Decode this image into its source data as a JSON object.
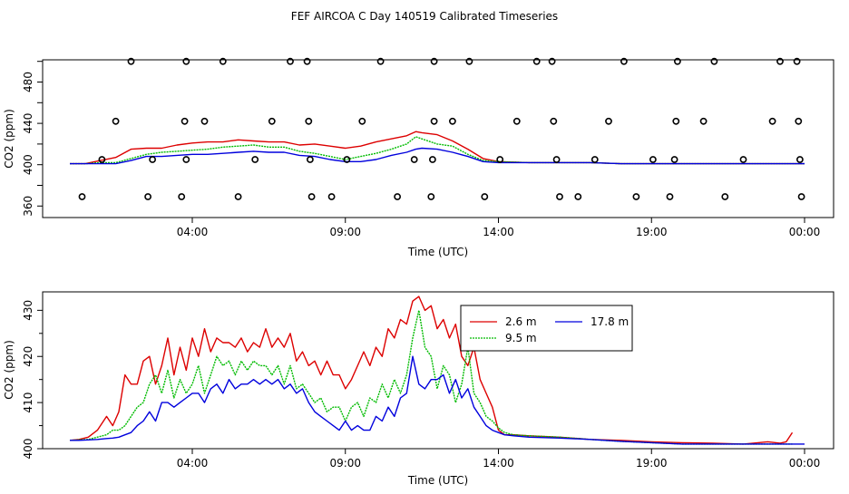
{
  "title": "FEF AIRCOA C  Day 140519  Calibrated Timeseries",
  "colors": {
    "red": "#dd0000",
    "green": "#00bb00",
    "blue": "#0000dd",
    "axis": "#000000"
  },
  "chart_data": [
    {
      "type": "scatter",
      "xlabel": "Time (UTC)",
      "ylabel": "CO2 (ppm)",
      "x_unit": "hours UTC",
      "xlim": [
        0,
        24
      ],
      "ylim": [
        355,
        505
      ],
      "xtick_labels": [
        "04:00",
        "09:00",
        "14:00",
        "19:00",
        "00:00"
      ],
      "ytick_labels": [
        "360",
        "400",
        "440",
        "480"
      ],
      "points": [
        {
          "x": 2.0,
          "y": 500
        },
        {
          "x": 3.8,
          "y": 500
        },
        {
          "x": 5.0,
          "y": 500
        },
        {
          "x": 7.2,
          "y": 500
        },
        {
          "x": 7.75,
          "y": 500
        },
        {
          "x": 10.15,
          "y": 500
        },
        {
          "x": 11.9,
          "y": 500
        },
        {
          "x": 13.05,
          "y": 500
        },
        {
          "x": 15.25,
          "y": 500
        },
        {
          "x": 15.75,
          "y": 500
        },
        {
          "x": 18.1,
          "y": 500
        },
        {
          "x": 19.85,
          "y": 500
        },
        {
          "x": 21.05,
          "y": 500
        },
        {
          "x": 23.2,
          "y": 500
        },
        {
          "x": 23.75,
          "y": 500
        },
        {
          "x": 1.5,
          "y": 442
        },
        {
          "x": 3.75,
          "y": 442
        },
        {
          "x": 4.4,
          "y": 442
        },
        {
          "x": 6.6,
          "y": 442
        },
        {
          "x": 7.8,
          "y": 442
        },
        {
          "x": 9.55,
          "y": 442
        },
        {
          "x": 11.9,
          "y": 442
        },
        {
          "x": 12.5,
          "y": 442
        },
        {
          "x": 14.6,
          "y": 442
        },
        {
          "x": 15.8,
          "y": 442
        },
        {
          "x": 17.6,
          "y": 442
        },
        {
          "x": 19.8,
          "y": 442
        },
        {
          "x": 20.7,
          "y": 442
        },
        {
          "x": 22.95,
          "y": 442
        },
        {
          "x": 23.8,
          "y": 442
        },
        {
          "x": 1.05,
          "y": 405
        },
        {
          "x": 2.7,
          "y": 405
        },
        {
          "x": 3.8,
          "y": 405
        },
        {
          "x": 6.05,
          "y": 405
        },
        {
          "x": 7.85,
          "y": 405
        },
        {
          "x": 9.05,
          "y": 405
        },
        {
          "x": 11.25,
          "y": 405
        },
        {
          "x": 11.85,
          "y": 405
        },
        {
          "x": 14.05,
          "y": 405
        },
        {
          "x": 15.9,
          "y": 405
        },
        {
          "x": 17.15,
          "y": 405
        },
        {
          "x": 19.05,
          "y": 405
        },
        {
          "x": 19.75,
          "y": 405
        },
        {
          "x": 22.0,
          "y": 405
        },
        {
          "x": 23.85,
          "y": 405
        },
        {
          "x": 0.4,
          "y": 369
        },
        {
          "x": 2.55,
          "y": 369
        },
        {
          "x": 3.65,
          "y": 369
        },
        {
          "x": 5.5,
          "y": 369
        },
        {
          "x": 7.9,
          "y": 369
        },
        {
          "x": 8.55,
          "y": 369
        },
        {
          "x": 10.7,
          "y": 369
        },
        {
          "x": 11.8,
          "y": 369
        },
        {
          "x": 13.55,
          "y": 369
        },
        {
          "x": 16.0,
          "y": 369
        },
        {
          "x": 16.6,
          "y": 369
        },
        {
          "x": 18.5,
          "y": 369
        },
        {
          "x": 19.6,
          "y": 369
        },
        {
          "x": 21.4,
          "y": 369
        },
        {
          "x": 23.9,
          "y": 369
        }
      ],
      "series": [
        {
          "color": "red",
          "x": [
            0,
            0.5,
            1.0,
            1.5,
            2.0,
            2.5,
            3.0,
            3.5,
            4.0,
            4.5,
            5.0,
            5.5,
            6.0,
            6.5,
            7.0,
            7.5,
            8.0,
            8.5,
            9.0,
            9.5,
            10.0,
            10.5,
            11.0,
            11.3,
            11.5,
            12.0,
            12.5,
            13.0,
            13.5,
            14.0,
            15,
            16,
            17,
            18,
            19,
            20,
            21,
            22,
            23,
            23.7,
            24
          ],
          "y": [
            401,
            401,
            404,
            407,
            415,
            416,
            416,
            419,
            421,
            422,
            422,
            424,
            423,
            422,
            422,
            419,
            420,
            418,
            416,
            418,
            422,
            425,
            428,
            432,
            431,
            429,
            423,
            415,
            406,
            403,
            402,
            402,
            402,
            401,
            401,
            401,
            401,
            401,
            401,
            401,
            401
          ]
        },
        {
          "color": "green",
          "x": [
            0,
            0.5,
            1.0,
            1.5,
            2.0,
            2.5,
            3.0,
            3.5,
            4.0,
            4.5,
            5.0,
            5.5,
            6.0,
            6.5,
            7.0,
            7.5,
            8.0,
            8.5,
            9.0,
            9.5,
            10.0,
            10.5,
            11.0,
            11.3,
            11.5,
            12.0,
            12.5,
            13.0,
            13.5,
            14.0,
            15,
            16,
            17,
            18,
            19,
            20,
            21,
            22,
            23,
            24
          ],
          "y": [
            401,
            401,
            402,
            402,
            406,
            410,
            412,
            413,
            414,
            415,
            417,
            418,
            419,
            417,
            417,
            413,
            411,
            408,
            405,
            408,
            411,
            415,
            420,
            427,
            425,
            420,
            418,
            410,
            404,
            403,
            402,
            402,
            402,
            401,
            401,
            401,
            401,
            401,
            401,
            401
          ]
        },
        {
          "color": "blue",
          "x": [
            0,
            0.5,
            1.0,
            1.5,
            2.0,
            2.5,
            3.0,
            3.5,
            4.0,
            4.5,
            5.0,
            5.5,
            6.0,
            6.5,
            7.0,
            7.5,
            8.0,
            8.5,
            9.0,
            9.5,
            10.0,
            10.5,
            11.0,
            11.3,
            11.5,
            12.0,
            12.5,
            13.0,
            13.5,
            14.0,
            15,
            16,
            17,
            18,
            19,
            20,
            21,
            22,
            23,
            24
          ],
          "y": [
            401,
            401,
            401,
            401,
            404,
            408,
            408,
            409,
            410,
            410,
            411,
            412,
            413,
            412,
            412,
            409,
            408,
            405,
            403,
            403,
            405,
            409,
            412,
            415,
            416,
            415,
            412,
            408,
            403,
            402,
            402,
            402,
            402,
            401,
            401,
            401,
            401,
            401,
            401,
            401
          ]
        }
      ]
    },
    {
      "type": "line",
      "xlabel": "Time (UTC)",
      "ylabel": "CO2 (ppm)",
      "x_unit": "hours UTC",
      "xlim": [
        0,
        24
      ],
      "ylim": [
        400,
        434
      ],
      "xtick_labels": [
        "04:00",
        "09:00",
        "14:00",
        "19:00",
        "00:00"
      ],
      "ytick_labels": [
        "400",
        "410",
        "420",
        "430"
      ],
      "legend": "top-right",
      "series": [
        {
          "name": "2.6 m",
          "color": "red",
          "x": [
            0,
            0.3,
            0.6,
            0.9,
            1.2,
            1.4,
            1.6,
            1.8,
            2.0,
            2.2,
            2.4,
            2.6,
            2.8,
            3.0,
            3.2,
            3.4,
            3.6,
            3.8,
            4.0,
            4.2,
            4.4,
            4.6,
            4.8,
            5.0,
            5.2,
            5.4,
            5.6,
            5.8,
            6.0,
            6.2,
            6.4,
            6.6,
            6.8,
            7.0,
            7.2,
            7.4,
            7.6,
            7.8,
            8.0,
            8.2,
            8.4,
            8.6,
            8.8,
            9.0,
            9.2,
            9.4,
            9.6,
            9.8,
            10.0,
            10.2,
            10.4,
            10.6,
            10.8,
            11.0,
            11.2,
            11.4,
            11.6,
            11.8,
            12.0,
            12.2,
            12.4,
            12.6,
            12.8,
            13.0,
            13.2,
            13.4,
            13.6,
            13.8,
            14.0,
            14.2,
            14.5,
            15,
            16,
            17,
            18,
            19,
            20,
            21,
            22,
            22.8,
            23.2,
            23.4,
            23.6
          ],
          "y": [
            401.8,
            402.0,
            402.5,
            404,
            407,
            405,
            408,
            416,
            414,
            414,
            419,
            420,
            414,
            418,
            424,
            416,
            422,
            417,
            424,
            420,
            426,
            421,
            424,
            423,
            423,
            422,
            424,
            421,
            423,
            422,
            426,
            422,
            424,
            422,
            425,
            419,
            421,
            418,
            419,
            416,
            419,
            416,
            416,
            413,
            415,
            418,
            421,
            418,
            422,
            420,
            426,
            424,
            428,
            427,
            432,
            433,
            430,
            431,
            426,
            428,
            424,
            427,
            420,
            418,
            422,
            415,
            412,
            409,
            404,
            403,
            403,
            402.8,
            402.5,
            402.0,
            401.8,
            401.5,
            401.3,
            401.2,
            401.0,
            401.5,
            401.2,
            401.5,
            403.5
          ]
        },
        {
          "name": "9.5 m",
          "color": "green",
          "x": [
            0,
            0.3,
            0.6,
            0.9,
            1.2,
            1.4,
            1.6,
            1.8,
            2.0,
            2.2,
            2.4,
            2.6,
            2.8,
            3.0,
            3.2,
            3.4,
            3.6,
            3.8,
            4.0,
            4.2,
            4.4,
            4.6,
            4.8,
            5.0,
            5.2,
            5.4,
            5.6,
            5.8,
            6.0,
            6.2,
            6.4,
            6.6,
            6.8,
            7.0,
            7.2,
            7.4,
            7.6,
            7.8,
            8.0,
            8.2,
            8.4,
            8.6,
            8.8,
            9.0,
            9.2,
            9.4,
            9.6,
            9.8,
            10.0,
            10.2,
            10.4,
            10.6,
            10.8,
            11.0,
            11.2,
            11.4,
            11.6,
            11.8,
            12.0,
            12.2,
            12.4,
            12.6,
            12.8,
            13.0,
            13.2,
            13.4,
            13.6,
            13.8,
            14.0,
            14.2,
            14.5,
            15,
            16,
            17,
            18,
            19,
            20,
            21,
            22,
            23,
            23.6
          ],
          "y": [
            401.8,
            401.9,
            402,
            402.5,
            403,
            404,
            404,
            405,
            407,
            409,
            410,
            414,
            416,
            412,
            417,
            411,
            415,
            412,
            414,
            418,
            412,
            416,
            420,
            418,
            419,
            416,
            419,
            417,
            419,
            418,
            418,
            416,
            418,
            414,
            418,
            413,
            414,
            412,
            410,
            411,
            408,
            409,
            409,
            406,
            409,
            410,
            407,
            411,
            410,
            414,
            411,
            415,
            412,
            416,
            424,
            430,
            422,
            420,
            413,
            418,
            416,
            410,
            414,
            422,
            412,
            410,
            407,
            406,
            404.5,
            403.5,
            403,
            402.8,
            402.5,
            402.0,
            401.6,
            401.3,
            401.0,
            401.0,
            401.0,
            401.0,
            401.0
          ]
        },
        {
          "name": "17.8 m",
          "color": "blue",
          "x": [
            0,
            0.3,
            0.6,
            0.9,
            1.2,
            1.4,
            1.6,
            1.8,
            2.0,
            2.2,
            2.4,
            2.6,
            2.8,
            3.0,
            3.2,
            3.4,
            3.6,
            3.8,
            4.0,
            4.2,
            4.4,
            4.6,
            4.8,
            5.0,
            5.2,
            5.4,
            5.6,
            5.8,
            6.0,
            6.2,
            6.4,
            6.6,
            6.8,
            7.0,
            7.2,
            7.4,
            7.6,
            7.8,
            8.0,
            8.2,
            8.4,
            8.6,
            8.8,
            9.0,
            9.2,
            9.4,
            9.6,
            9.8,
            10.0,
            10.2,
            10.4,
            10.6,
            10.8,
            11.0,
            11.2,
            11.4,
            11.6,
            11.8,
            12.0,
            12.2,
            12.4,
            12.6,
            12.8,
            13.0,
            13.2,
            13.4,
            13.6,
            13.8,
            14.0,
            14.2,
            14.5,
            15,
            16,
            17,
            18,
            19,
            20,
            21,
            22,
            23,
            24
          ],
          "y": [
            401.8,
            401.8,
            401.9,
            402,
            402.2,
            402.3,
            402.5,
            403,
            403.5,
            405,
            406,
            408,
            406,
            410,
            410,
            409,
            410,
            411,
            412,
            412,
            410,
            413,
            414,
            412,
            415,
            413,
            414,
            414,
            415,
            414,
            415,
            414,
            415,
            413,
            414,
            412,
            413,
            410,
            408,
            407,
            406,
            405,
            404,
            406,
            404,
            405,
            404,
            404,
            407,
            406,
            409,
            407,
            411,
            412,
            420,
            414,
            413,
            415,
            415,
            416,
            412,
            415,
            411,
            413,
            409,
            407,
            405,
            404,
            403.5,
            403,
            402.8,
            402.5,
            402.3,
            402.0,
            401.6,
            401.3,
            401.0,
            401.0,
            401.0,
            401.0,
            401.0
          ]
        }
      ]
    }
  ]
}
